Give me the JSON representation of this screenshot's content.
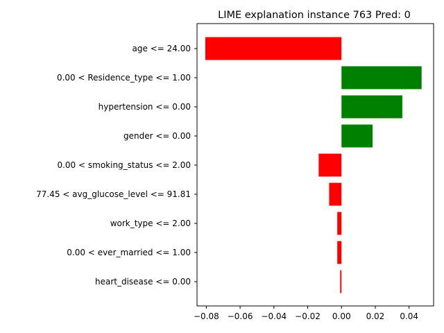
{
  "chart_data": {
    "type": "bar",
    "orientation": "horizontal",
    "title": "LIME explanation instance 763 Pred: 0",
    "xlabel": "",
    "ylabel": "",
    "xlim": [
      -0.0855,
      0.0545
    ],
    "xticks": [
      -0.08,
      -0.06,
      -0.04,
      -0.02,
      0.0,
      0.02,
      0.04
    ],
    "xtick_labels": [
      "−0.08",
      "−0.06",
      "−0.04",
      "−0.02",
      "0.00",
      "0.02",
      "0.04"
    ],
    "grid": false,
    "legend": "none",
    "positive_color": "#008000",
    "negative_color": "#ff0000",
    "categories": [
      "age <= 24.00",
      "0.00 < Residence_type <= 1.00",
      "hypertension <= 0.00",
      "gender <= 0.00",
      "0.00 < smoking_status <= 2.00",
      "77.45 < avg_glucose_level <= 91.81",
      "work_type <= 2.00",
      "0.00 < ever_married <= 1.00",
      "heart_disease <= 0.00"
    ],
    "values": [
      -0.0806,
      0.0474,
      0.036,
      0.0184,
      -0.0135,
      -0.0073,
      -0.0025,
      -0.0025,
      -0.0008
    ]
  }
}
